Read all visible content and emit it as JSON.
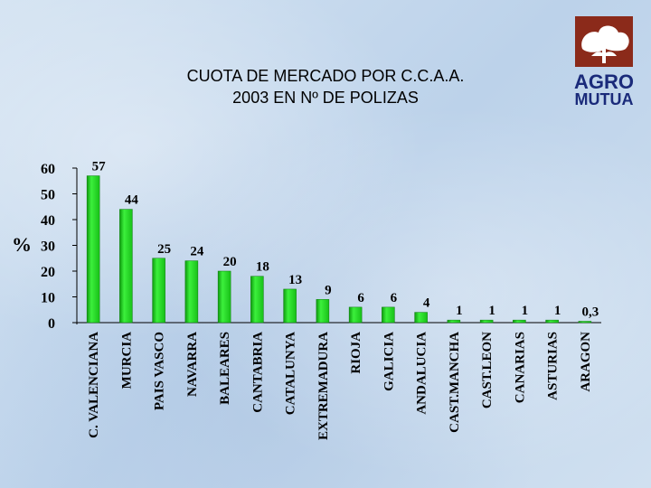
{
  "title": {
    "line1": "CUOTA DE MERCADO POR C.C.A.A.",
    "line2": "2003 EN Nº DE POLIZAS"
  },
  "logo": {
    "line1": "AGRO",
    "line2": "MUTUA"
  },
  "colors": {
    "bar": "#22dd22",
    "bar_light": "#9af09a",
    "bar_dark": "#0a7a0a",
    "logo_tree": "#8b2a1a",
    "logo_text": "#1a2a7a"
  },
  "chart_data": {
    "type": "bar",
    "ylabel": "%",
    "ylim": [
      0,
      60
    ],
    "yticks": [
      0,
      10,
      20,
      30,
      40,
      50,
      60
    ],
    "grid": false,
    "categories": [
      "C. VALENCIANA",
      "MURCIA",
      "PAIS VASCO",
      "NAVARRA",
      "BALEARES",
      "CANTABRIA",
      "CATALUNYA",
      "EXTREMADURA",
      "RIOJA",
      "GALICIA",
      "ANDALUCIA",
      "CAST.MANCHA",
      "CAST.LEON",
      "CANARIAS",
      "ASTURIAS",
      "ARAGON"
    ],
    "values": [
      57,
      44,
      25,
      24,
      20,
      18,
      13,
      9,
      6,
      6,
      4,
      1,
      1,
      1,
      1,
      0.3
    ],
    "data_labels": [
      "57",
      "44",
      "25",
      "24",
      "20",
      "18",
      "13",
      "9",
      "6",
      "6",
      "4",
      "1",
      "1",
      "1",
      "1",
      "0,3"
    ]
  }
}
